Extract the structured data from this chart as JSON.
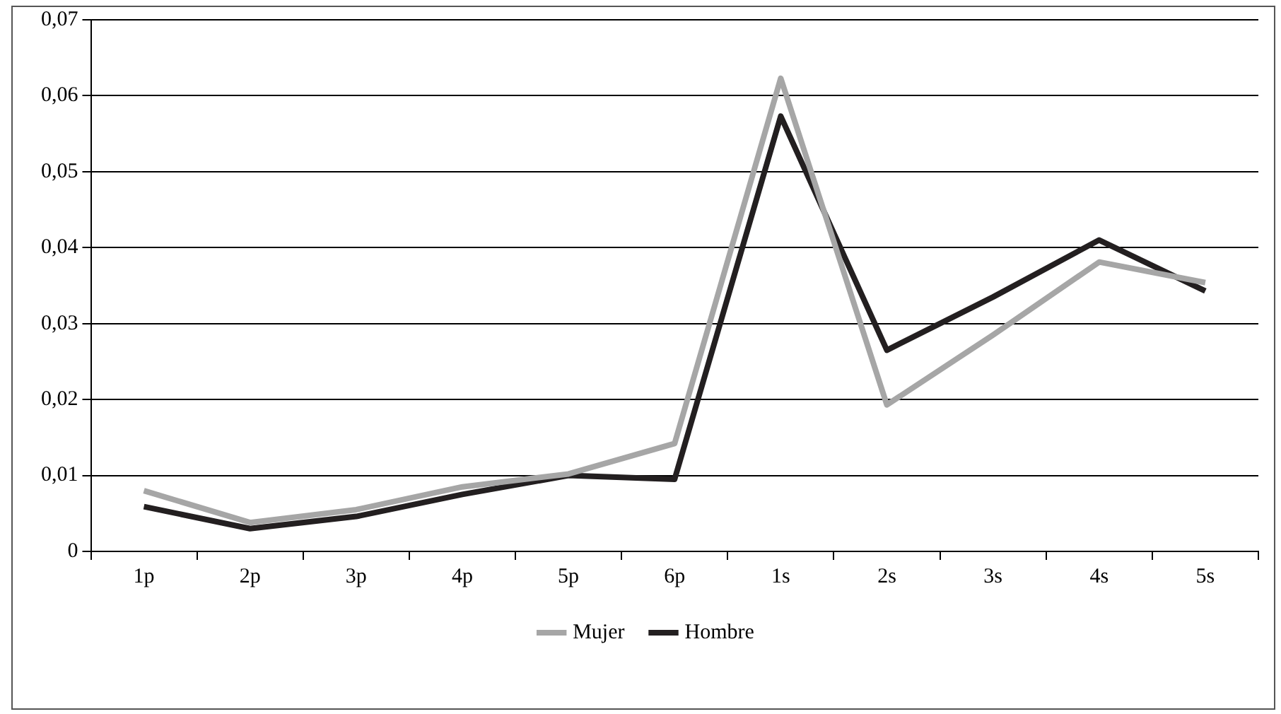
{
  "chart_data": {
    "type": "line",
    "categories": [
      "1p",
      "2p",
      "3p",
      "4p",
      "5p",
      "6p",
      "1s",
      "2s",
      "3s",
      "4s",
      "5s"
    ],
    "series": [
      {
        "name": "Mujer",
        "color": "#a6a6a6",
        "values": [
          0.008,
          0.0038,
          0.0055,
          0.0085,
          0.0102,
          0.0142,
          0.0623,
          0.0193,
          0.0285,
          0.0381,
          0.0354
        ]
      },
      {
        "name": "Hombre",
        "color": "#231f20",
        "values": [
          0.0059,
          0.003,
          0.0046,
          0.0075,
          0.01,
          0.0095,
          0.0573,
          0.0265,
          0.0335,
          0.041,
          0.0343
        ]
      }
    ],
    "ylim": [
      0,
      0.07
    ],
    "yticks": [
      0,
      {
        "value": 0.01,
        "label": "0,01"
      },
      {
        "value": 0.02,
        "label": "0,02"
      },
      {
        "value": 0.03,
        "label": "0,03"
      },
      {
        "value": 0.04,
        "label": "0,04"
      },
      {
        "value": 0.05,
        "label": "0,05"
      },
      {
        "value": 0.06,
        "label": "0,06"
      },
      {
        "value": 0.07,
        "label": "0,07"
      }
    ],
    "grid": "y",
    "legend": "bottom",
    "marker": "none",
    "line_style": "solid"
  }
}
